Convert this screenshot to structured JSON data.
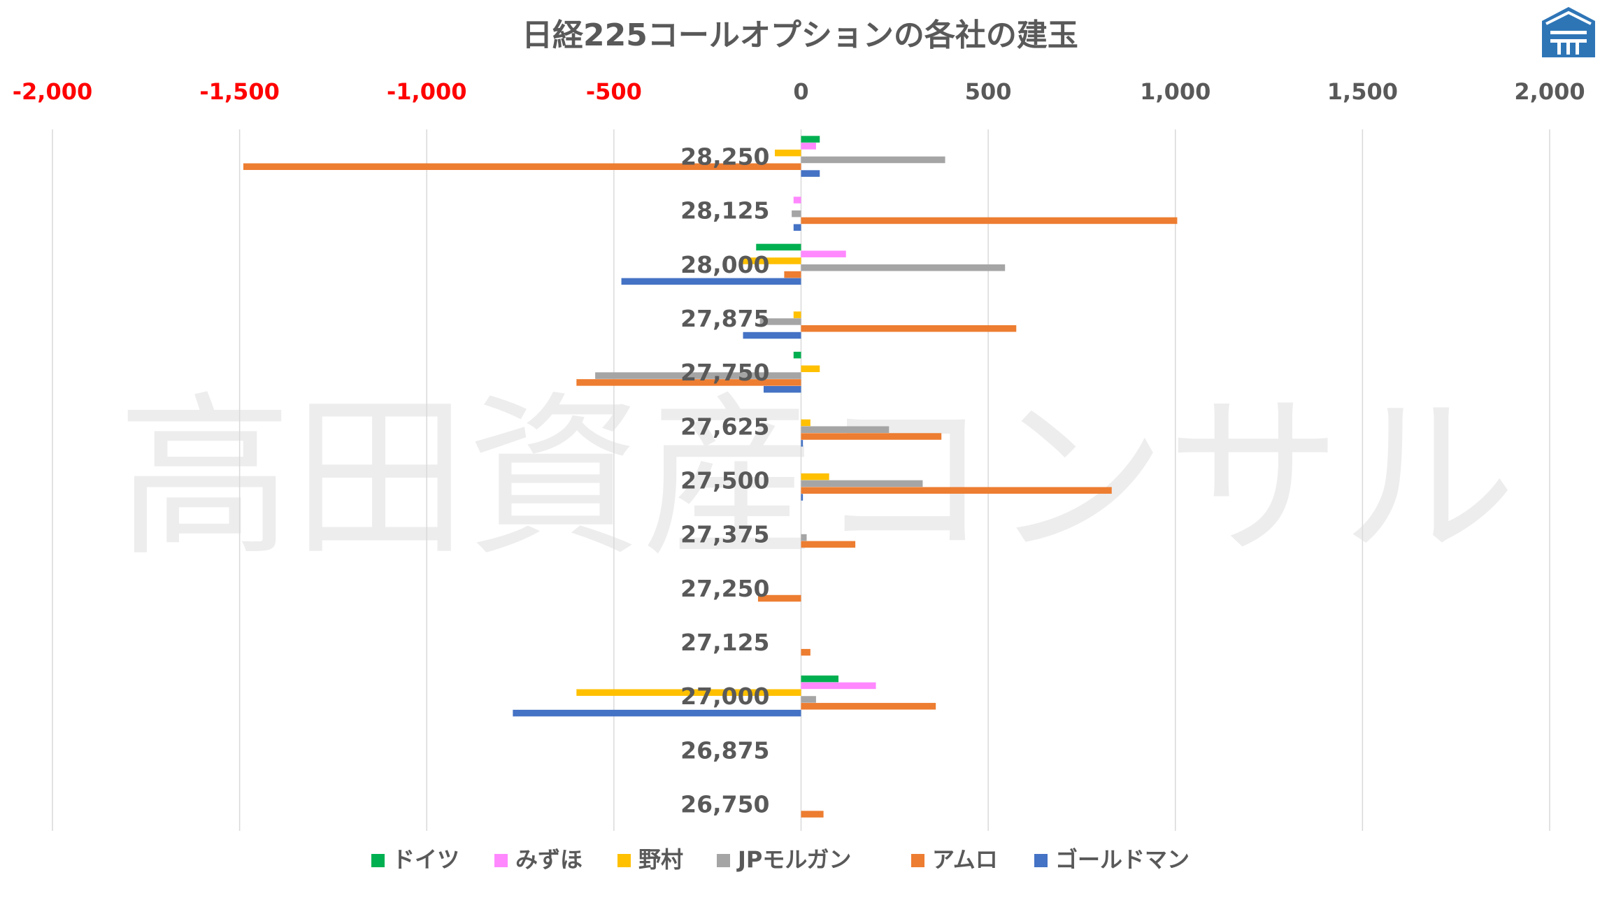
{
  "chart_data": {
    "type": "bar",
    "orientation": "horizontal",
    "title": "日経225コールオプションの各社の建玉",
    "watermark": "高田資産コンサル",
    "xlim": [
      -2000,
      2000
    ],
    "x_ticks": [
      "-2,000",
      "-1,500",
      "-1,000",
      "-500",
      "0",
      "500",
      "1,000",
      "1,500",
      "2,000"
    ],
    "x_tick_values": [
      -2000,
      -1500,
      -1000,
      -500,
      0,
      500,
      1000,
      1500,
      2000
    ],
    "negative_tick_color": "#ff0000",
    "positive_tick_color": "#595959",
    "grid": true,
    "legend_position": "bottom",
    "categories": [
      "28,250",
      "28,125",
      "28,000",
      "27,875",
      "27,750",
      "27,625",
      "27,500",
      "27,375",
      "27,250",
      "27,125",
      "27,000",
      "26,875",
      "26,750"
    ],
    "series": [
      {
        "name": "ドイツ",
        "color": "#00b050",
        "values": [
          50,
          0,
          -120,
          0,
          -20,
          0,
          0,
          0,
          0,
          0,
          100,
          0,
          0
        ]
      },
      {
        "name": "みずほ",
        "color": "#ff88ff",
        "values": [
          40,
          -20,
          120,
          0,
          0,
          0,
          0,
          0,
          0,
          0,
          200,
          0,
          0
        ]
      },
      {
        "name": "野村",
        "color": "#ffc000",
        "values": [
          -70,
          0,
          -160,
          -20,
          50,
          25,
          75,
          0,
          0,
          0,
          -600,
          0,
          0
        ]
      },
      {
        "name": "JPモルガン",
        "color": "#a5a5a5",
        "values": [
          385,
          -25,
          545,
          -110,
          -550,
          235,
          325,
          15,
          0,
          0,
          40,
          0,
          0
        ]
      },
      {
        "name": "アムロ",
        "color": "#ed7d31",
        "values": [
          -1490,
          1005,
          -45,
          575,
          -600,
          375,
          830,
          145,
          -115,
          25,
          360,
          0,
          60
        ]
      },
      {
        "name": "ゴールドマン",
        "color": "#4472c4",
        "values": [
          50,
          -20,
          -480,
          -155,
          -100,
          5,
          5,
          0,
          0,
          0,
          -770,
          0,
          0
        ]
      }
    ]
  }
}
